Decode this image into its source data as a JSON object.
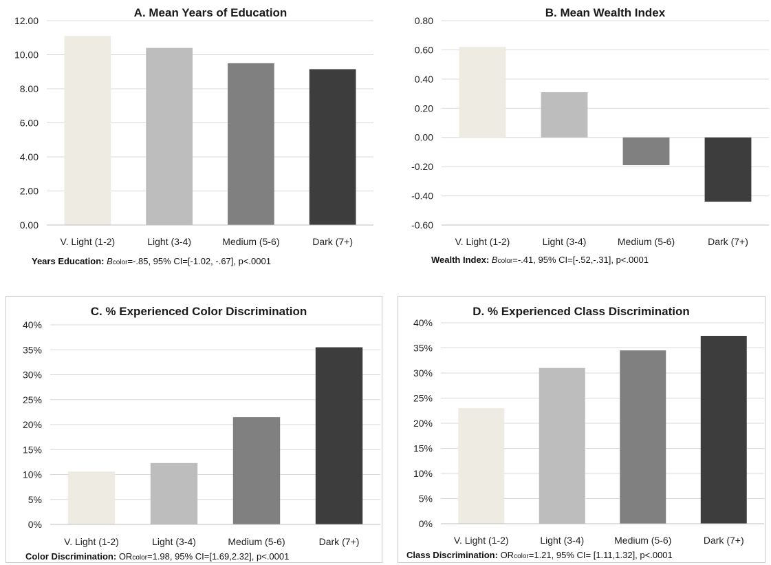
{
  "colors": {
    "V. Light (1-2)": "#eeebe2",
    "Light (3-4)": "#bdbdbd",
    "Medium (5-6)": "#808080",
    "Dark (7+)": "#3d3d3d"
  },
  "chart_data": [
    {
      "id": "A",
      "type": "bar",
      "title": "A. Mean Years of Education",
      "categories": [
        "V. Light (1-2)",
        "Light (3-4)",
        "Medium (5-6)",
        "Dark (7+)"
      ],
      "values": [
        11.1,
        10.4,
        9.5,
        9.15
      ],
      "ylim": [
        0,
        12
      ],
      "yticks": [
        "0.00",
        "2.00",
        "4.00",
        "6.00",
        "8.00",
        "10.00",
        "12.00"
      ],
      "grid": true,
      "footnote": {
        "label": "Years Education:",
        "coef": "B",
        "coef_sub": "color",
        "rest": "=-.85, 95% CI=[-1.02, -.67], p<.0001"
      }
    },
    {
      "id": "B",
      "type": "bar",
      "title": "B. Mean Wealth Index",
      "categories": [
        "V. Light (1-2)",
        "Light (3-4)",
        "Medium (5-6)",
        "Dark (7+)"
      ],
      "values": [
        0.62,
        0.31,
        -0.19,
        -0.44
      ],
      "ylim": [
        -0.6,
        0.8
      ],
      "yticks": [
        "-0.60",
        "-0.40",
        "-0.20",
        "0.00",
        "0.20",
        "0.40",
        "0.60",
        "0.80"
      ],
      "grid": true,
      "footnote": {
        "label": "Wealth Index:",
        "coef": "B",
        "coef_sub": "color",
        "rest": "=-.41, 95% CI=[-.52,-.31], p<.0001"
      }
    },
    {
      "id": "C",
      "type": "bar",
      "title": "C. % Experienced Color Discrimination",
      "categories": [
        "V. Light (1-2)",
        "Light (3-4)",
        "Medium (5-6)",
        "Dark (7+)"
      ],
      "values": [
        10.6,
        12.3,
        21.5,
        35.5
      ],
      "ylim": [
        0,
        40
      ],
      "yticks": [
        "0%",
        "5%",
        "10%",
        "15%",
        "20%",
        "25%",
        "30%",
        "35%",
        "40%"
      ],
      "grid": true,
      "footnote": {
        "label": "Color Discrimination:",
        "coef": "OR",
        "coef_sub": "color",
        "rest": "=1.98, 95% CI=[1.69,2.32], p<.0001"
      }
    },
    {
      "id": "D",
      "type": "bar",
      "title": "D. % Experienced Class Discrimination",
      "categories": [
        "V. Light (1-2)",
        "Light (3-4)",
        "Medium (5-6)",
        "Dark (7+)"
      ],
      "values": [
        23.0,
        31.0,
        34.5,
        37.4
      ],
      "ylim": [
        0,
        40
      ],
      "yticks": [
        "0%",
        "5%",
        "10%",
        "15%",
        "20%",
        "25%",
        "30%",
        "35%",
        "40%"
      ],
      "grid": true,
      "footnote": {
        "label": "Class Discrimination:",
        "coef": "OR",
        "coef_sub": "color",
        "rest": "=1.21, 95% CI= [1.11,1.32], p<.0001"
      }
    }
  ]
}
